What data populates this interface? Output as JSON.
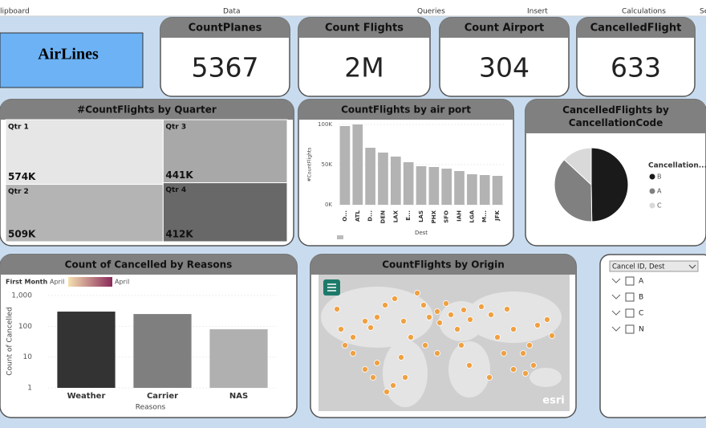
{
  "ribbon": [
    "lipboard",
    "Data",
    "Queries",
    "Insert",
    "Calculations",
    "Se"
  ],
  "logo": "AirLines",
  "cards": [
    {
      "title": "CountPlanes",
      "value": "5367"
    },
    {
      "title": "Count Flights",
      "value": "2M"
    },
    {
      "title": "Count Airport",
      "value": "304"
    },
    {
      "title": "CancelledFlight",
      "value": "633"
    }
  ],
  "chart_data": [
    {
      "type": "treemap",
      "title": "#CountFlights by Quarter",
      "categories": [
        "Qtr 1",
        "Qtr 2",
        "Qtr 3",
        "Qtr 4"
      ],
      "values": [
        574000,
        509000,
        441000,
        412000
      ],
      "value_labels": [
        "574K",
        "509K",
        "441K",
        "412K"
      ],
      "colors": [
        "#e6e6e6",
        "#b4b4b4",
        "#a8a8a8",
        "#686868"
      ]
    },
    {
      "type": "bar",
      "title": "CountFlights by air port",
      "x_label": "Dest",
      "y_label": "#CountFlights",
      "categories": [
        "O...",
        "ATL",
        "D...",
        "DEN",
        "LAX",
        "E...",
        "LAS",
        "PHX",
        "SFO",
        "IAH",
        "LGA",
        "M...",
        "JFK"
      ],
      "values": [
        98000,
        100000,
        71000,
        65000,
        60000,
        53000,
        48000,
        47000,
        45000,
        42000,
        38000,
        37000,
        36000
      ],
      "color": "#b3b3b3",
      "ylim": [
        0,
        100000
      ],
      "yticks": [
        {
          "value": 0,
          "label": "0K"
        },
        {
          "value": 50000,
          "label": "50K"
        },
        {
          "value": 100000,
          "label": "100K"
        }
      ]
    },
    {
      "type": "pie",
      "title": "CancelledFlights by CancellationCode",
      "legend_title": "Cancellation...",
      "categories": [
        "B",
        "A",
        "C"
      ],
      "values": [
        315,
        235,
        83
      ],
      "colors": [
        "#1a1a1a",
        "#808080",
        "#d9d9d9"
      ]
    },
    {
      "type": "bar",
      "title": "Count of Cancelled by Reasons",
      "x_label": "Reasons",
      "y_label": "Count of Cancelled",
      "legend_title": "First Month",
      "legend_min": "April",
      "legend_max": "April",
      "log_scale": true,
      "categories": [
        "Weather",
        "Carrier",
        "NAS"
      ],
      "values": [
        300,
        250,
        80
      ],
      "colors": [
        "#333333",
        "#7f7f7f",
        "#b0b0b0"
      ],
      "ylim": [
        1,
        1000
      ],
      "yticks": [
        1,
        10,
        100,
        {
          "value": 1000,
          "label": "1,000"
        }
      ]
    },
    {
      "type": "map",
      "title": "CountFlights by Origin",
      "attribution": "esri"
    }
  ],
  "slicer": {
    "title": "Cancel ID, Dest",
    "items": [
      "A",
      "B",
      "C",
      "N"
    ]
  }
}
